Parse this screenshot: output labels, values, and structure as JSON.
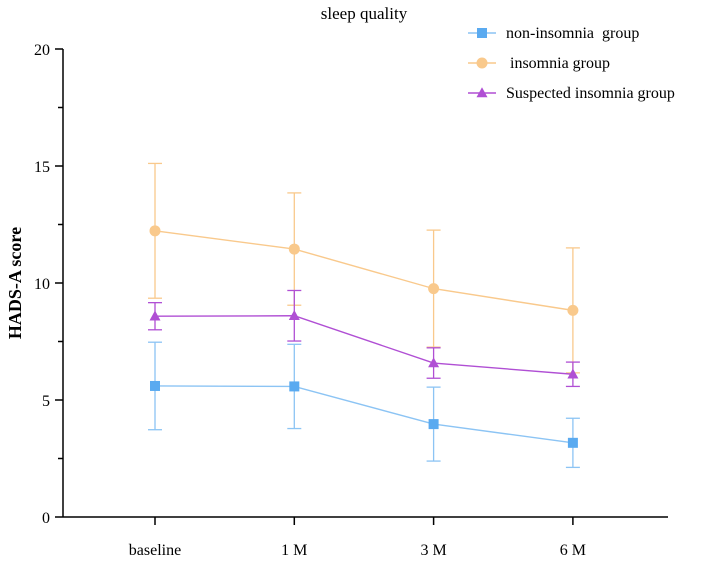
{
  "chart_data": {
    "type": "line",
    "title": "sleep quality",
    "xlabel": "",
    "ylabel": "HADS-A score",
    "categories": [
      "baseline",
      "1 M",
      "3 M",
      "6 M"
    ],
    "ylim": [
      0,
      20
    ],
    "yticks": [
      0,
      5,
      10,
      15,
      20
    ],
    "legend_position": "top-right",
    "series": [
      {
        "name": "non-insomnia  group",
        "marker": "square",
        "color": "#5aaaf0",
        "line_color": "#8cc4f4",
        "values": [
          5.6,
          5.58,
          3.97,
          3.17
        ],
        "errors": [
          1.87,
          1.8,
          1.58,
          1.05
        ]
      },
      {
        "name": " insomnia group",
        "marker": "circle",
        "color": "#f9c98c",
        "line_color": "#f9c98c",
        "values": [
          12.23,
          11.45,
          9.76,
          8.83
        ],
        "errors": [
          2.88,
          2.4,
          2.5,
          2.67
        ]
      },
      {
        "name": "Suspected insomnia group",
        "marker": "triangle",
        "color": "#b04fd4",
        "line_color": "#b04fd4",
        "values": [
          8.58,
          8.6,
          6.58,
          6.1
        ],
        "errors": [
          0.58,
          1.08,
          0.65,
          0.52
        ]
      }
    ]
  }
}
